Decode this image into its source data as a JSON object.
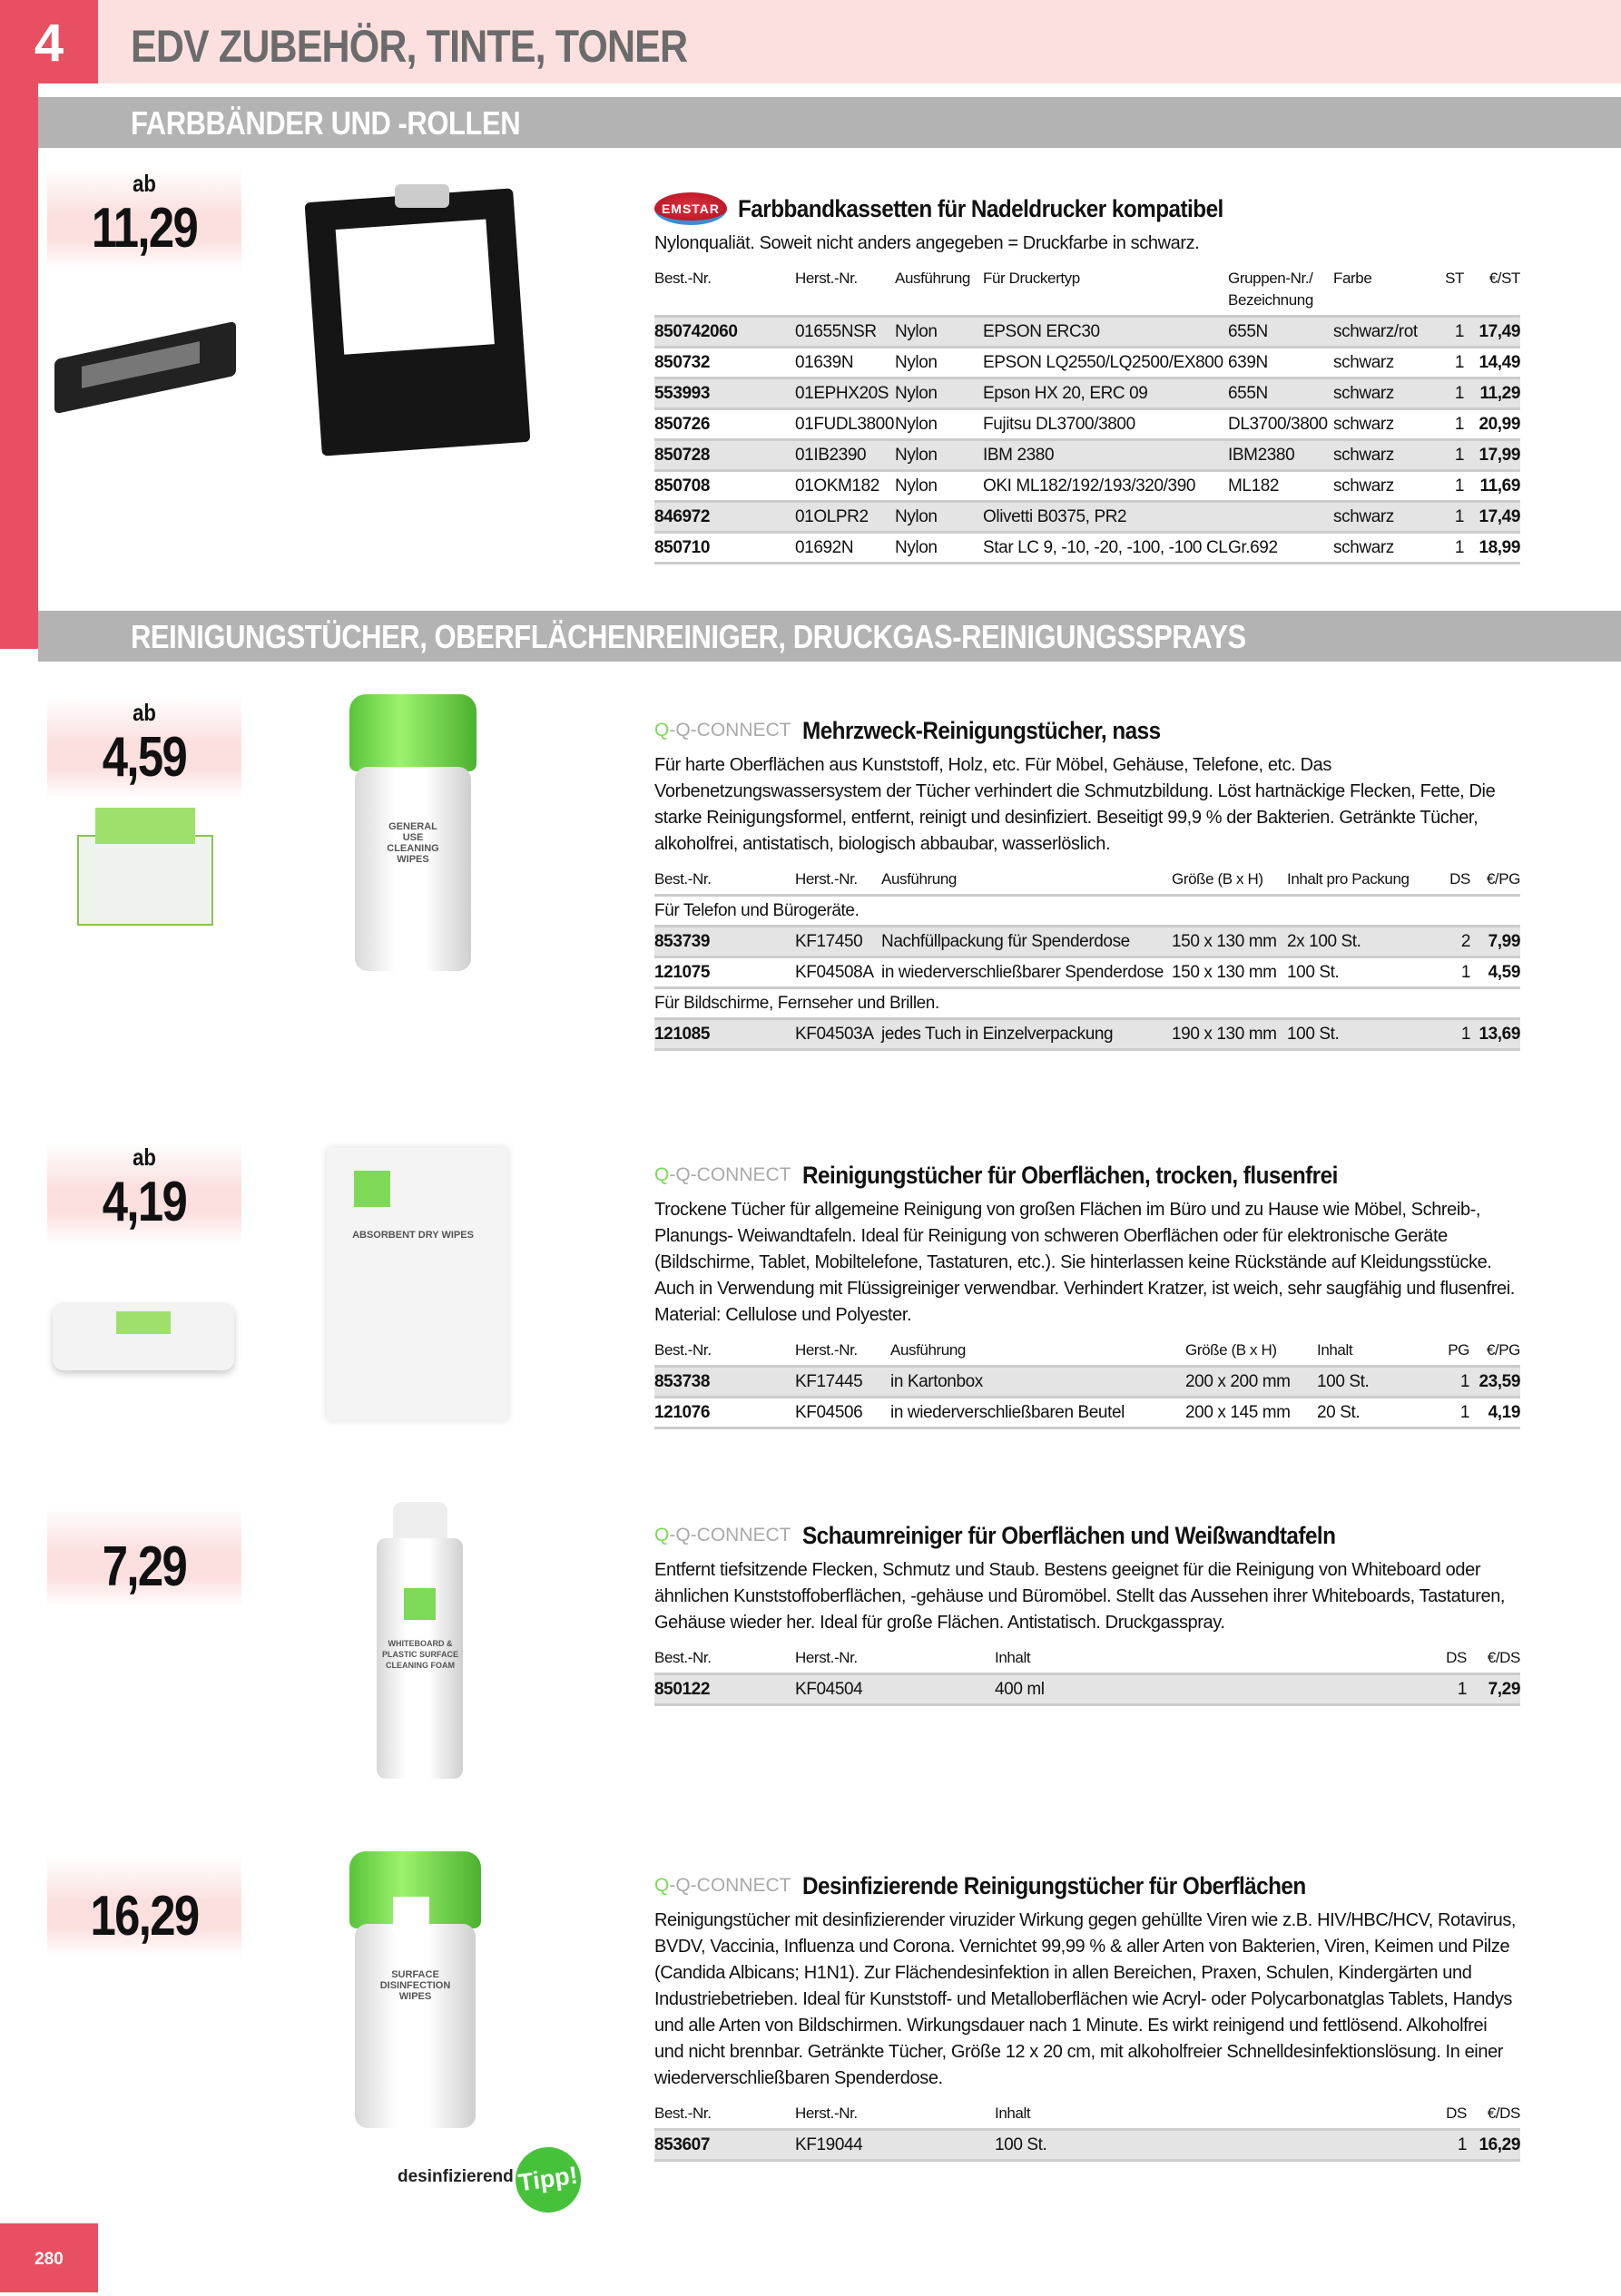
{
  "header": {
    "chapter": "4",
    "title": "EDV ZUBEHÖR, TINTE, TONER",
    "page_number": "280"
  },
  "colors": {
    "accent": "#e85062",
    "header_bg": "#fce0df",
    "band": "#b3b3b3",
    "green": "#45c23a"
  },
  "sections": [
    {
      "title": "FARBBÄNDER UND -ROLLEN"
    },
    {
      "title": "REINIGUNGSTÜCHER, OBERFLÄCHENREINIGER, DRUCKGAS-REINIGUNGSSPRAYS"
    }
  ],
  "products": [
    {
      "brand": "EMSTAR",
      "price_prefix": "ab",
      "price": "11,29",
      "title": "Farbbandkassetten für Nadeldrucker kompatibel",
      "description": "Nylonqualiät. Soweit nicht anders angegeben = Druckfarbe in schwarz.",
      "columns": [
        "Best.-Nr.",
        "Herst.-Nr.",
        "Ausführung",
        "Für Druckertyp",
        "Gruppen-Nr./ Bezeichnung",
        "Farbe",
        "ST",
        "€/ST"
      ],
      "groups": [
        {
          "label": "",
          "rows": [
            [
              "850742060",
              "01655NSR",
              "Nylon",
              "EPSON ERC30",
              "655N",
              "schwarz/rot",
              "1",
              "17,49"
            ],
            [
              "850732",
              "01639N",
              "Nylon",
              "EPSON LQ2550/LQ2500/EX800",
              "639N",
              "schwarz",
              "1",
              "14,49"
            ],
            [
              "553993",
              "01EPHX20S",
              "Nylon",
              "Epson HX 20, ERC 09",
              "655N",
              "schwarz",
              "1",
              "11,29"
            ],
            [
              "850726",
              "01FUDL3800",
              "Nylon",
              "Fujitsu DL3700/3800",
              "DL3700/3800",
              "schwarz",
              "1",
              "20,99"
            ],
            [
              "850728",
              "01IB2390",
              "Nylon",
              "IBM 2380",
              "IBM2380",
              "schwarz",
              "1",
              "17,99"
            ],
            [
              "850708",
              "01OKM182",
              "Nylon",
              "OKI ML182/192/193/320/390",
              "ML182",
              "schwarz",
              "1",
              "11,69"
            ],
            [
              "846972",
              "01OLPR2",
              "Nylon",
              "Olivetti B0375, PR2",
              "",
              "schwarz",
              "1",
              "17,49"
            ],
            [
              "850710",
              "01692N",
              "Nylon",
              "Star LC 9, -10, -20, -100, -100 CL",
              "Gr.692",
              "schwarz",
              "1",
              "18,99"
            ]
          ]
        }
      ]
    },
    {
      "brand": "Q-CONNECT",
      "price_prefix": "ab",
      "price": "4,59",
      "title": "Mehrzweck-Reinigungstücher, nass",
      "description": "Für harte Oberflächen aus Kunststoff, Holz, etc. Für Möbel, Gehäuse, Telefone, etc. Das Vorbenetzungswassersystem der Tücher verhindert die Schmutzbildung. Löst hartnäckige Flecken, Fette, Die starke Reinigungsformel, entfernt, reinigt und desinfiziert. Beseitigt 99,9 % der Bakterien. Getränkte Tücher, alkoholfrei, antistatisch, biologisch abbaubar, wasserlöslich.",
      "columns": [
        "Best.-Nr.",
        "Herst.-Nr.",
        "Ausführung",
        "Größe (B x H)",
        "Inhalt pro Packung",
        "DS",
        "€/PG"
      ],
      "groups": [
        {
          "label": "Für Telefon und Bürogeräte.",
          "rows": [
            [
              "853739",
              "KF17450",
              "Nachfüllpackung für Spenderdose",
              "150 x 130 mm",
              "2x 100 St.",
              "2",
              "7,99"
            ],
            [
              "121075",
              "KF04508A",
              "in wiederverschließbarer Spenderdose",
              "150 x 130 mm",
              "100 St.",
              "1",
              "4,59"
            ]
          ]
        },
        {
          "label": "Für Bildschirme, Fernseher und Brillen.",
          "rows": [
            [
              "121085",
              "KF04503A",
              "jedes Tuch in Einzelverpackung",
              "190 x 130 mm",
              "100 St.",
              "1",
              "13,69"
            ]
          ]
        }
      ]
    },
    {
      "brand": "Q-CONNECT",
      "price_prefix": "ab",
      "price": "4,19",
      "title": "Reinigungstücher für Oberflächen, trocken, flusenfrei",
      "description": "Trockene Tücher für allgemeine Reinigung von großen Flächen im Büro und zu Hause wie Möbel, Schreib-, Planungs- Weiwandtafeln. Ideal für Reinigung von schweren Oberflächen oder für elektronische Geräte (Bildschirme, Tablet, Mobiltelefone, Tastaturen, etc.). Sie hinterlassen keine Rückstände auf Kleidungsstücke. Auch in Verwendung mit Flüssigreiniger verwendbar. Verhindert Kratzer, ist weich, sehr saugfähig und flusenfrei. Material: Cellulose und Polyester.",
      "columns": [
        "Best.-Nr.",
        "Herst.-Nr.",
        "Ausführung",
        "Größe (B x H)",
        "Inhalt",
        "PG",
        "€/PG"
      ],
      "groups": [
        {
          "label": "",
          "rows": [
            [
              "853738",
              "KF17445",
              "in Kartonbox",
              "200 x 200 mm",
              "100 St.",
              "1",
              "23,59"
            ],
            [
              "121076",
              "KF04506",
              "in wiederverschließbaren Beutel",
              "200 x 145 mm",
              "20 St.",
              "1",
              "4,19"
            ]
          ]
        }
      ]
    },
    {
      "brand": "Q-CONNECT",
      "price_prefix": "",
      "price": "7,29",
      "title": "Schaumreiniger für Oberflächen und Weißwandtafeln",
      "description": "Entfernt tiefsitzende Flecken, Schmutz und Staub. Bestens geeignet für die Reinigung von Whiteboard oder ähnlichen Kunststoffoberflächen, -gehäuse und Büromöbel. Stellt das Aussehen ihrer Whiteboards, Tastaturen, Gehäuse wieder her. Ideal für große Flächen. Antistatisch. Druckgasspray.",
      "columns": [
        "Best.-Nr.",
        "Herst.-Nr.",
        "Inhalt",
        "DS",
        "€/DS"
      ],
      "groups": [
        {
          "label": "",
          "rows": [
            [
              "850122",
              "KF04504",
              "400 ml",
              "1",
              "7,29"
            ]
          ]
        }
      ]
    },
    {
      "brand": "Q-CONNECT",
      "price_prefix": "",
      "price": "16,29",
      "title": "Desinfizierende Reinigungstücher für Oberflächen",
      "description": "Reinigungstücher mit desinfizierender viruzider Wirkung gegen gehüllte Viren wie z.B. HIV/HBC/HCV, Rotavirus, BVDV, Vaccinia, Influenza und Corona. Vernichtet 99,99 % & aller Arten von Bakterien, Viren, Keimen und Pilze (Candida Albicans; H1N1). Zur Flächendesinfektion in allen Bereichen, Praxen, Schulen, Kindergärten und Industriebetrieben. Ideal für Kunststoff- und Metalloberflächen wie Acryl- oder Polycarbonatglas Tablets, Handys und alle Arten von Bildschirmen. Wirkungsdauer nach 1 Minute. Es wirkt reinigend und fettlösend. Alkoholfrei und nicht brennbar. Getränkte Tücher, Größe 12 x 20 cm, mit alkoholfreier Schnelldesinfektionslösung. In einer wiederverschließbaren Spenderdose.",
      "columns": [
        "Best.-Nr.",
        "Herst.-Nr.",
        "Inhalt",
        "DS",
        "€/DS"
      ],
      "groups": [
        {
          "label": "",
          "rows": [
            [
              "853607",
              "KF19044",
              "100 St.",
              "1",
              "16,29"
            ]
          ]
        }
      ]
    }
  ],
  "tipp": {
    "label": "desinfizierend",
    "badge": "Tipp!"
  },
  "image_labels": {
    "wipes_general": "GENERAL USE CLEANING WIPES",
    "dry_wipes": "ABSORBENT DRY WIPES",
    "foam": "WHITEBOARD & PLASTIC SURFACE CLEANING FOAM",
    "disinfect": "SURFACE DISINFECTION WIPES"
  }
}
